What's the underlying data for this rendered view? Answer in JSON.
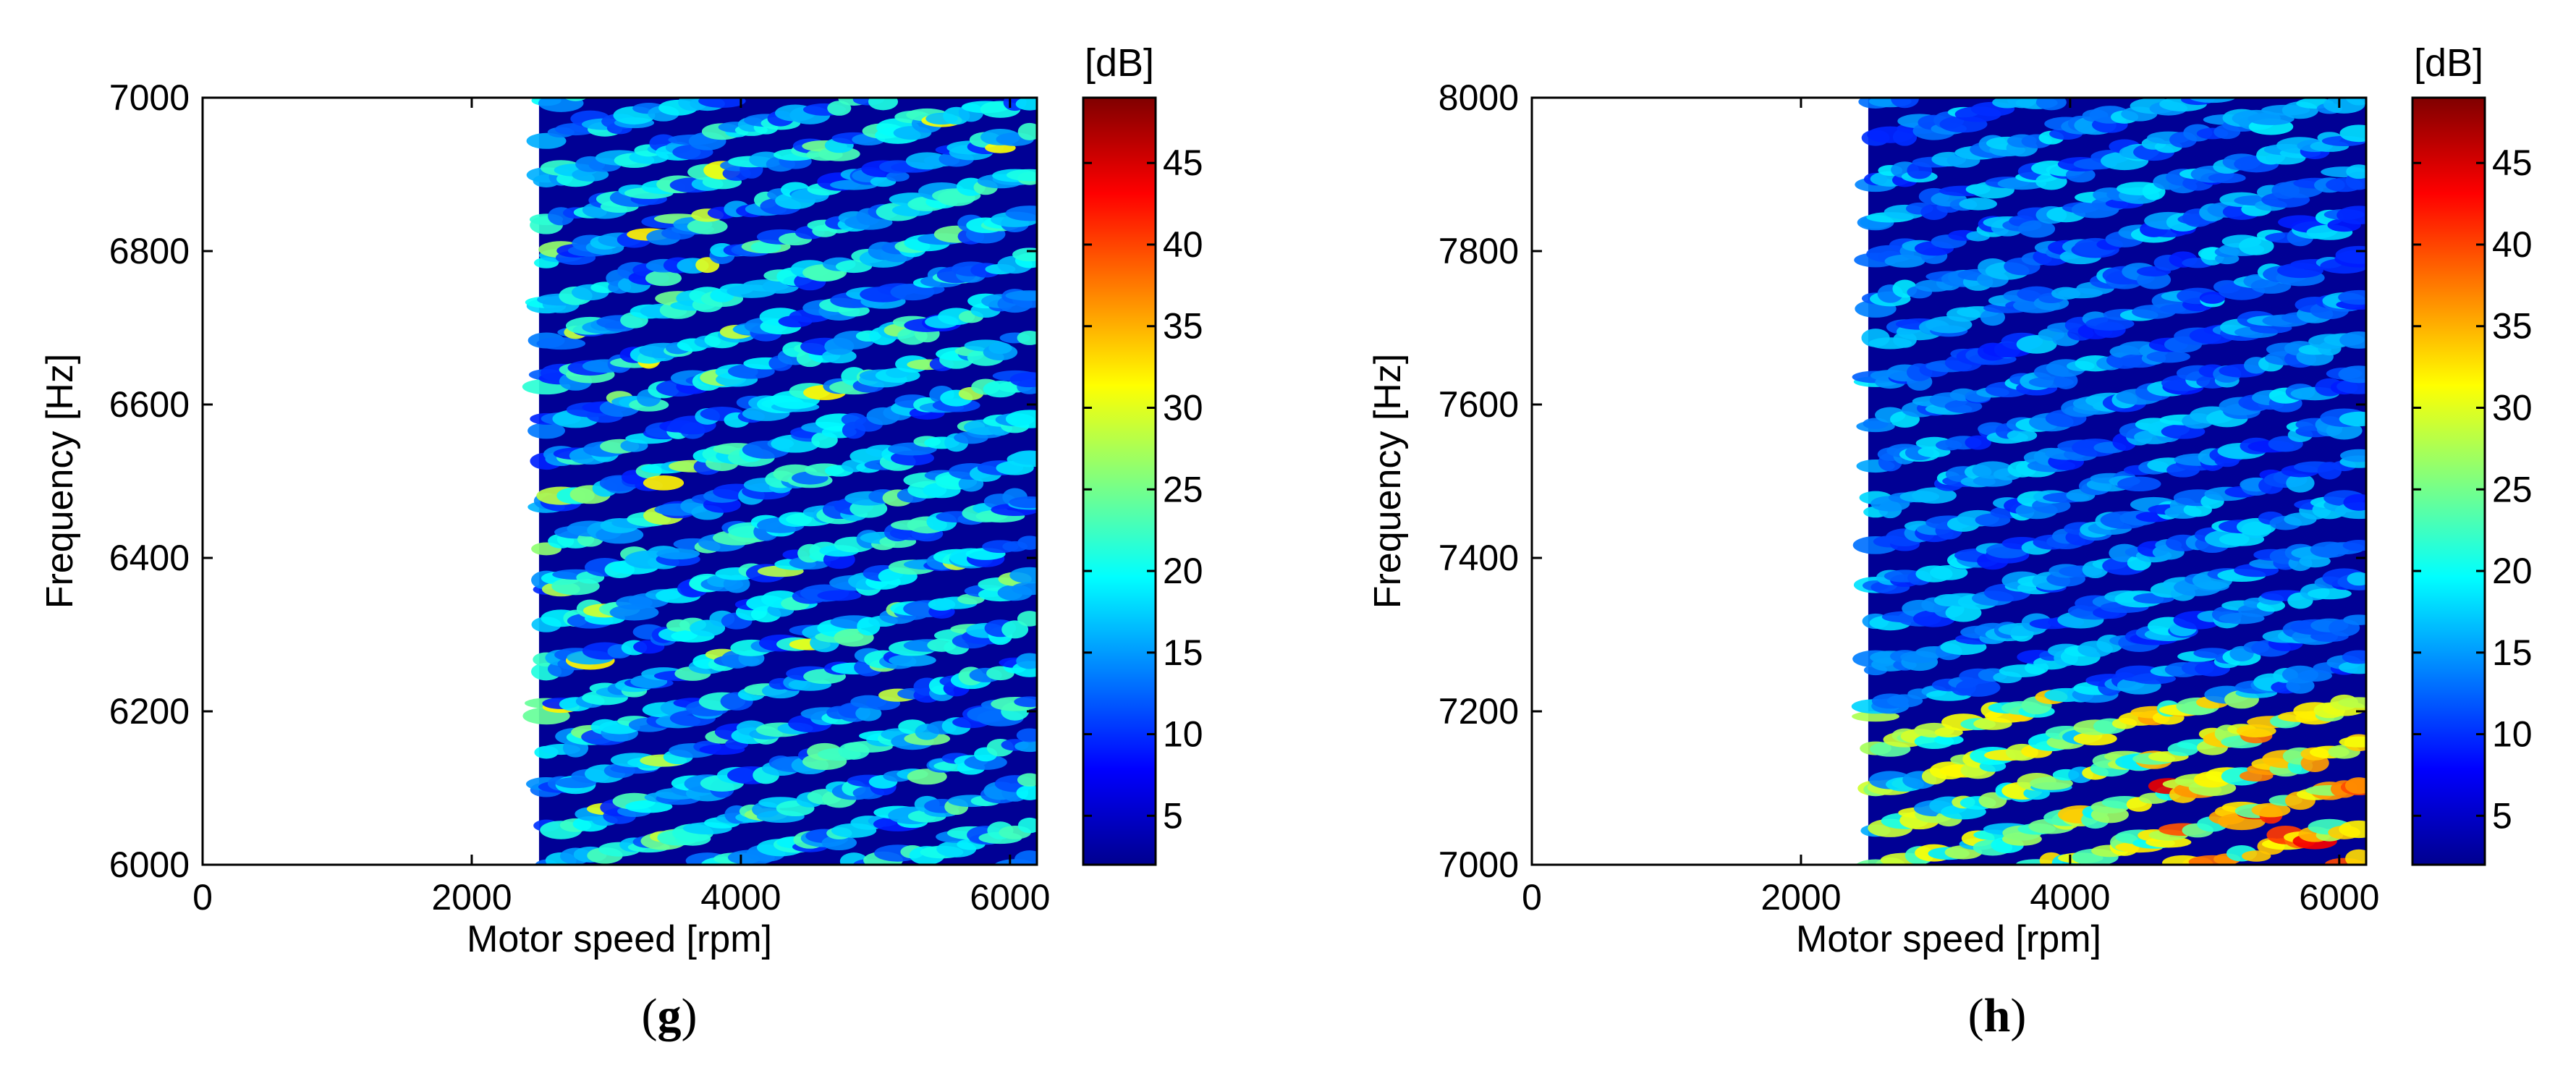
{
  "chart_data": [
    {
      "type": "heatmap",
      "panel": "g",
      "title": "",
      "xlabel": "Motor speed [rpm]",
      "ylabel": "Frequency [Hz]",
      "xlim": [
        0,
        6200
      ],
      "ylim": [
        6000,
        7000
      ],
      "xticks": [
        0,
        2000,
        4000,
        6000
      ],
      "yticks": [
        6000,
        6200,
        6400,
        6600,
        6800,
        7000
      ],
      "data_x_range": [
        2500,
        6200
      ],
      "colorbar": {
        "label": "[dB]",
        "range": [
          2,
          49
        ],
        "ticks": [
          5,
          10,
          15,
          20,
          25,
          30,
          35,
          40,
          45
        ],
        "colormap": "jet"
      },
      "description_values": {
        "background_level_db": 3,
        "typical_peak_db": 20,
        "max_peak_db": 32
      }
    },
    {
      "type": "heatmap",
      "panel": "h",
      "title": "",
      "xlabel": "Motor speed [rpm]",
      "ylabel": "Frequency [Hz]",
      "xlim": [
        0,
        6200
      ],
      "ylim": [
        7000,
        8000
      ],
      "xticks": [
        0,
        2000,
        4000,
        6000
      ],
      "yticks": [
        7000,
        7200,
        7400,
        7600,
        7800,
        8000
      ],
      "data_x_range": [
        2500,
        6200
      ],
      "colorbar": {
        "label": "[dB]",
        "range": [
          2,
          49
        ],
        "ticks": [
          5,
          10,
          15,
          20,
          25,
          30,
          35,
          40,
          45
        ],
        "colormap": "jet"
      },
      "description_values": {
        "background_level_db": 3,
        "typical_peak_db": 16,
        "max_peak_db": 46
      }
    }
  ],
  "panel_labels": {
    "g": {
      "open": "(",
      "letter": "g",
      "close": ")"
    },
    "h": {
      "open": "(",
      "letter": "h",
      "close": ")"
    }
  },
  "colors": {
    "axis": "#000000",
    "background": "#ffffff"
  }
}
